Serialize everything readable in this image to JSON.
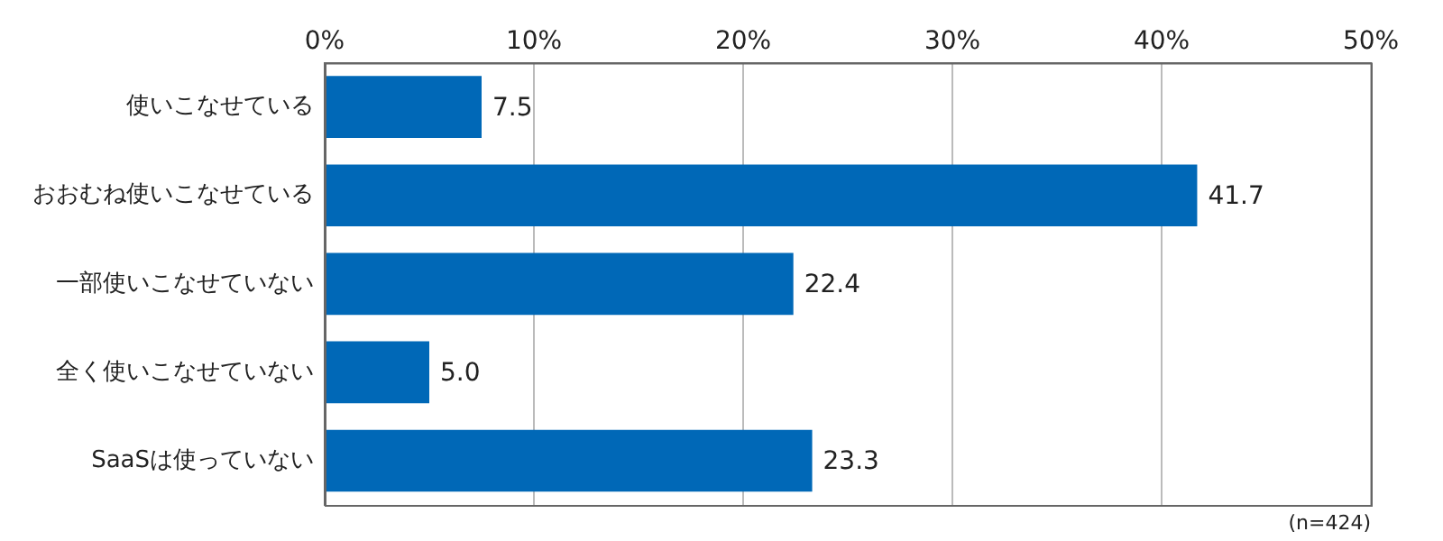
{
  "chart_data": {
    "type": "bar",
    "orientation": "horizontal",
    "categories": [
      "使いこなせている",
      "おおむね使いこなせている",
      "一部使いこなせていない",
      "全く使いこなせていない",
      "SaaSは使っていない"
    ],
    "values": [
      7.5,
      41.7,
      22.4,
      5.0,
      23.3
    ],
    "value_labels": [
      "7.5",
      "41.7",
      "22.4",
      "5.0",
      "23.3"
    ],
    "color": "#0068b7",
    "xlim": [
      0,
      50
    ],
    "xticks": [
      {
        "value": 0,
        "label": "0%"
      },
      {
        "value": 10,
        "label": "10%"
      },
      {
        "value": 20,
        "label": "20%"
      },
      {
        "value": 30,
        "label": "30%"
      },
      {
        "value": 40,
        "label": "40%"
      },
      {
        "value": 50,
        "label": "50%"
      }
    ],
    "grid": "x",
    "legend": false,
    "annotations": [
      "(n=424)"
    ]
  }
}
